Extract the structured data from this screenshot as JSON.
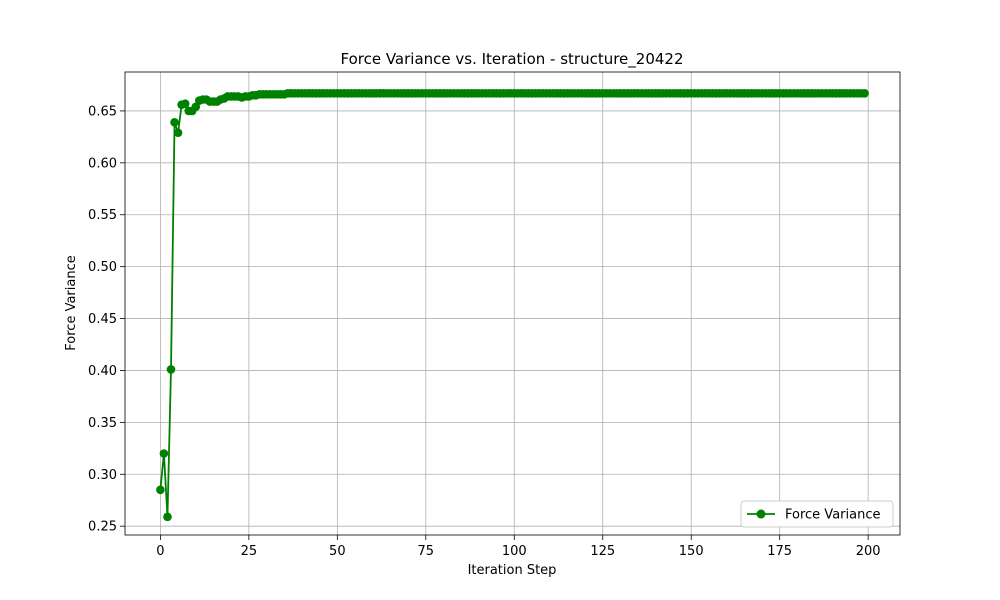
{
  "chart_data": {
    "type": "line",
    "title": "Force Variance vs. Iteration - structure_20422",
    "xlabel": "Iteration Step",
    "ylabel": "Force Variance",
    "xlim": [
      -10,
      209
    ],
    "ylim": [
      0.2415,
      0.6875
    ],
    "xticks": [
      0,
      25,
      50,
      75,
      100,
      125,
      150,
      175,
      200
    ],
    "yticks": [
      0.25,
      0.3,
      0.35,
      0.4,
      0.45,
      0.5,
      0.55,
      0.6,
      0.65
    ],
    "grid": true,
    "legend_position": "lower-right",
    "series": [
      {
        "name": "Force Variance",
        "color": "#008000",
        "marker": "circle",
        "start_values": [
          0.285,
          0.32,
          0.259,
          0.401,
          0.639,
          0.629,
          0.656,
          0.657,
          0.65,
          0.65,
          0.654,
          0.66,
          0.661,
          0.661,
          0.659,
          0.659,
          0.659,
          0.661,
          0.662,
          0.664,
          0.664,
          0.664,
          0.664,
          0.663,
          0.664,
          0.664,
          0.665,
          0.665,
          0.666,
          0.666,
          0.666,
          0.666,
          0.666,
          0.666,
          0.666,
          0.666
        ],
        "plateau_value": 0.667,
        "total_points": 200
      }
    ]
  }
}
